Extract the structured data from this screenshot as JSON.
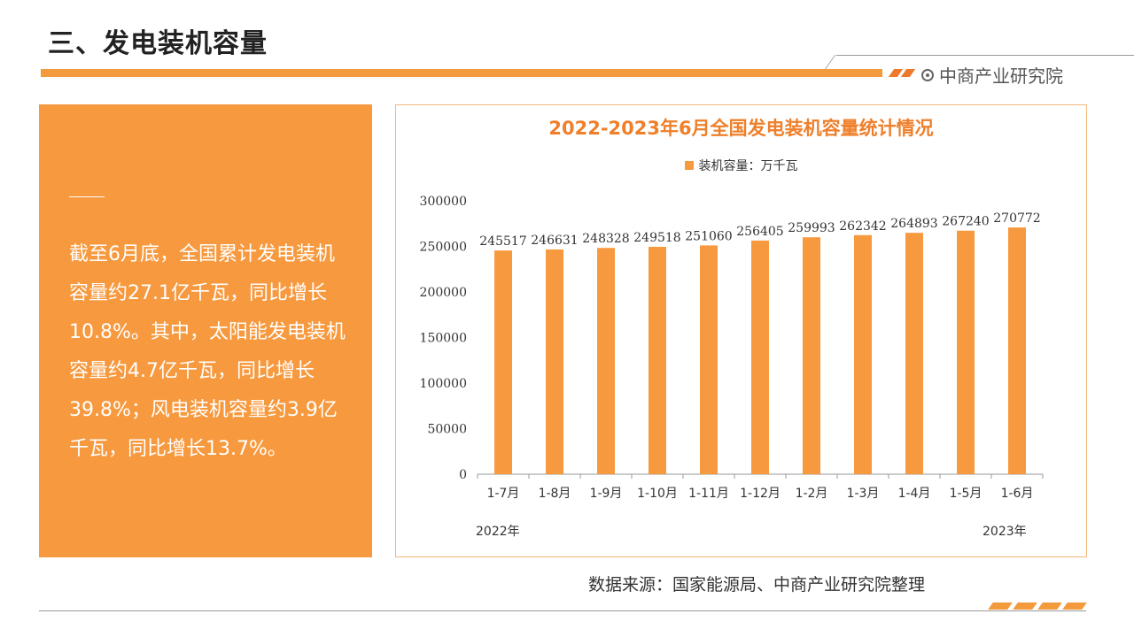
{
  "page": {
    "title": "三、发电装机容量",
    "brand": "中商产业研究院"
  },
  "panel": {
    "text": "截至6月底，全国累计发电装机容量约27.1亿千瓦，同比增长10.8%。其中，太阳能发电装机容量约4.7亿千瓦，同比增长39.8%；风电装机容量约3.9亿千瓦，同比增长13.7%。"
  },
  "source": "数据来源：国家能源局、中商产业研究院整理",
  "colors": {
    "accent": "#f7993e",
    "title_orange": "#ef7f2a"
  },
  "chart_data": {
    "type": "bar",
    "title": "2022-2023年6月全国发电装机容量统计情况",
    "categories": [
      "1-7月",
      "1-8月",
      "1-9月",
      "1-10月",
      "1-11月",
      "1-12月",
      "1-2月",
      "1-3月",
      "1-4月",
      "1-5月",
      "1-6月"
    ],
    "series": [
      {
        "name": "装机容量：万千瓦",
        "values": [
          245517,
          246631,
          248328,
          249518,
          251060,
          256405,
          259993,
          262342,
          264893,
          267240,
          270772
        ]
      }
    ],
    "year_labels": [
      "2022年",
      "2023年"
    ],
    "ylim": [
      0,
      300000
    ],
    "yticks": [
      0,
      50000,
      100000,
      150000,
      200000,
      250000,
      300000
    ],
    "data_labels": true,
    "legend_position": "top",
    "grid": false
  }
}
